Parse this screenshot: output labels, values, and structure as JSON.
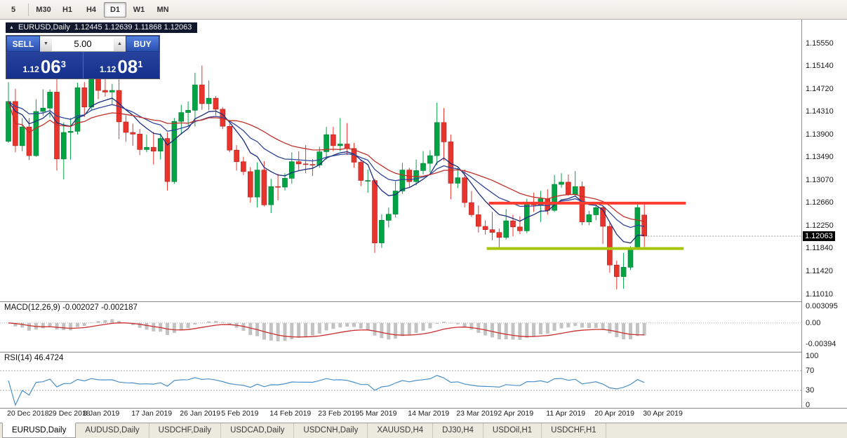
{
  "toolbar": {
    "timeframes": [
      "5",
      "M30",
      "H1",
      "H4",
      "D1",
      "W1",
      "MN"
    ],
    "active": "D1"
  },
  "chart": {
    "title_icon": "▲",
    "title_symbol": "EURUSD,Daily",
    "title_ohlc": "1.12445 1.12639 1.11868 1.12063",
    "trade_panel": {
      "sell_label": "SELL",
      "buy_label": "BUY",
      "volume": "5.00",
      "down_glyph": "▼",
      "up_glyph": "▲",
      "sell_price_small": "1.12",
      "sell_price_big": "06",
      "sell_price_sup": "3",
      "buy_price_small": "1.12",
      "buy_price_big": "08",
      "buy_price_sup": "1"
    },
    "price_axis": [
      "1.15550",
      "1.15140",
      "1.14720",
      "1.14310",
      "1.13900",
      "1.13490",
      "1.13070",
      "1.12660",
      "1.12250",
      "1.11840",
      "1.11420",
      "1.11010"
    ],
    "current_price_label": "1.12063",
    "chart_data": {
      "type": "candlestick",
      "symbol": "EURUSD",
      "timeframe": "Daily",
      "ohlc": [
        [
          1.1378,
          1.1485,
          1.1375,
          1.145
        ],
        [
          1.145,
          1.1473,
          1.1358,
          1.137
        ],
        [
          1.137,
          1.142,
          1.136,
          1.1404
        ],
        [
          1.1404,
          1.142,
          1.1344,
          1.1352
        ],
        [
          1.1352,
          1.1454,
          1.135,
          1.1432
        ],
        [
          1.1432,
          1.1472,
          1.1424,
          1.1438
        ],
        [
          1.1438,
          1.1472,
          1.1421,
          1.1467
        ],
        [
          1.1467,
          1.1497,
          1.1325,
          1.1346
        ],
        [
          1.1346,
          1.1412,
          1.1309,
          1.1394
        ],
        [
          1.1394,
          1.142,
          1.1345,
          1.1396
        ],
        [
          1.1396,
          1.1484,
          1.139,
          1.1475
        ],
        [
          1.1475,
          1.1485,
          1.1422,
          1.144
        ],
        [
          1.144,
          1.1518,
          1.1435,
          1.15
        ],
        [
          1.15,
          1.1522,
          1.1454,
          1.147
        ],
        [
          1.147,
          1.1511,
          1.1459,
          1.1467
        ],
        [
          1.1467,
          1.1482,
          1.1444,
          1.147
        ],
        [
          1.147,
          1.149,
          1.1382,
          1.1413
        ],
        [
          1.1413,
          1.1425,
          1.1377,
          1.1394
        ],
        [
          1.1394,
          1.141,
          1.137,
          1.1391
        ],
        [
          1.1391,
          1.14,
          1.1353,
          1.1363
        ],
        [
          1.1363,
          1.139,
          1.1358,
          1.1367
        ],
        [
          1.1367,
          1.1395,
          1.1336,
          1.136
        ],
        [
          1.136,
          1.1392,
          1.1345,
          1.1383
        ],
        [
          1.1383,
          1.1394,
          1.1289,
          1.1305
        ],
        [
          1.1305,
          1.142,
          1.1301,
          1.1414
        ],
        [
          1.1414,
          1.1444,
          1.139,
          1.143
        ],
        [
          1.143,
          1.145,
          1.1406,
          1.1434
        ],
        [
          1.1434,
          1.1502,
          1.1405,
          1.148
        ],
        [
          1.148,
          1.1515,
          1.1435,
          1.1446
        ],
        [
          1.1446,
          1.1488,
          1.1434,
          1.1456
        ],
        [
          1.1456,
          1.146,
          1.1425,
          1.1436
        ],
        [
          1.1436,
          1.144,
          1.14,
          1.1405
        ],
        [
          1.1405,
          1.141,
          1.1358,
          1.1362
        ],
        [
          1.1362,
          1.1371,
          1.1325,
          1.1341
        ],
        [
          1.1341,
          1.135,
          1.1317,
          1.1323
        ],
        [
          1.1323,
          1.1331,
          1.1267,
          1.1277
        ],
        [
          1.1277,
          1.134,
          1.1258,
          1.1326
        ],
        [
          1.1326,
          1.1342,
          1.126,
          1.1263
        ],
        [
          1.1263,
          1.131,
          1.1248,
          1.1296
        ],
        [
          1.1296,
          1.1319,
          1.1271,
          1.1295
        ],
        [
          1.1295,
          1.132,
          1.1289,
          1.1311
        ],
        [
          1.1311,
          1.1358,
          1.1301,
          1.1341
        ],
        [
          1.1341,
          1.136,
          1.1324,
          1.1337
        ],
        [
          1.1337,
          1.1371,
          1.132,
          1.1336
        ],
        [
          1.1336,
          1.1346,
          1.1315,
          1.1335
        ],
        [
          1.1335,
          1.1368,
          1.133,
          1.1359
        ],
        [
          1.1359,
          1.1404,
          1.1345,
          1.139
        ],
        [
          1.139,
          1.1404,
          1.136,
          1.137
        ],
        [
          1.137,
          1.142,
          1.136,
          1.1373
        ],
        [
          1.1373,
          1.1411,
          1.1353,
          1.1365
        ],
        [
          1.1365,
          1.1375,
          1.133,
          1.134
        ],
        [
          1.134,
          1.1344,
          1.1297,
          1.1307
        ],
        [
          1.1307,
          1.1327,
          1.1285,
          1.1307
        ],
        [
          1.1307,
          1.131,
          1.1176,
          1.1194
        ],
        [
          1.1194,
          1.1246,
          1.1185,
          1.1235
        ],
        [
          1.1235,
          1.1258,
          1.1222,
          1.1246
        ],
        [
          1.1246,
          1.1305,
          1.124,
          1.1288
        ],
        [
          1.1288,
          1.1339,
          1.1283,
          1.1326
        ],
        [
          1.1326,
          1.133,
          1.1294,
          1.1305
        ],
        [
          1.1305,
          1.1345,
          1.1298,
          1.1325
        ],
        [
          1.1325,
          1.136,
          1.1318,
          1.1338
        ],
        [
          1.1338,
          1.1362,
          1.1322,
          1.1352
        ],
        [
          1.1352,
          1.1448,
          1.1335,
          1.1412
        ],
        [
          1.1412,
          1.1438,
          1.1343,
          1.1377
        ],
        [
          1.1377,
          1.139,
          1.1273,
          1.1302
        ],
        [
          1.1302,
          1.133,
          1.1293,
          1.1312
        ],
        [
          1.1312,
          1.1327,
          1.1258,
          1.1267
        ],
        [
          1.1267,
          1.1288,
          1.1241,
          1.1245
        ],
        [
          1.1245,
          1.1262,
          1.1213,
          1.1224
        ],
        [
          1.1224,
          1.1235,
          1.1209,
          1.1218
        ],
        [
          1.1218,
          1.125,
          1.1199,
          1.1213
        ],
        [
          1.1213,
          1.122,
          1.1184,
          1.1204
        ],
        [
          1.1204,
          1.1255,
          1.12,
          1.1234
        ],
        [
          1.1234,
          1.1245,
          1.1206,
          1.1223
        ],
        [
          1.1223,
          1.1242,
          1.121,
          1.1216
        ],
        [
          1.1216,
          1.1274,
          1.1212,
          1.1264
        ],
        [
          1.1264,
          1.1285,
          1.125,
          1.1263
        ],
        [
          1.1263,
          1.1288,
          1.1232,
          1.1274
        ],
        [
          1.1274,
          1.1291,
          1.1245,
          1.1253
        ],
        [
          1.1253,
          1.1317,
          1.125,
          1.13
        ],
        [
          1.13,
          1.132,
          1.1294,
          1.1304
        ],
        [
          1.1304,
          1.1318,
          1.1279,
          1.1282
        ],
        [
          1.1282,
          1.1324,
          1.1278,
          1.1296
        ],
        [
          1.1296,
          1.1305,
          1.1226,
          1.1232
        ],
        [
          1.1232,
          1.1252,
          1.1226,
          1.1245
        ],
        [
          1.1245,
          1.1264,
          1.1235,
          1.1258
        ],
        [
          1.1258,
          1.1262,
          1.1192,
          1.1224
        ],
        [
          1.1224,
          1.123,
          1.114,
          1.1154
        ],
        [
          1.1154,
          1.1162,
          1.111,
          1.1133
        ],
        [
          1.1133,
          1.1176,
          1.1111,
          1.115
        ],
        [
          1.115,
          1.1188,
          1.1145,
          1.1185
        ],
        [
          1.1187,
          1.1265,
          1.1185,
          1.1258
        ],
        [
          1.12445,
          1.12639,
          1.11868,
          1.12063
        ]
      ],
      "last_close": 1.12063,
      "date_ticks": [
        {
          "index": 0,
          "label": "20 Dec 2018"
        },
        {
          "index": 6,
          "label": "29 Dec 2018"
        },
        {
          "index": 11,
          "label": "8 Jan 2019"
        },
        {
          "index": 18,
          "label": "17 Jan 2019"
        },
        {
          "index": 25,
          "label": "26 Jan 2019"
        },
        {
          "index": 31,
          "label": "5 Feb 2019"
        },
        {
          "index": 38,
          "label": "14 Feb 2019"
        },
        {
          "index": 45,
          "label": "23 Feb 2019"
        },
        {
          "index": 51,
          "label": "5 Mar 2019"
        },
        {
          "index": 58,
          "label": "14 Mar 2019"
        },
        {
          "index": 65,
          "label": "23 Mar 2019"
        },
        {
          "index": 71,
          "label": "2 Apr 2019"
        },
        {
          "index": 78,
          "label": "11 Apr 2019"
        },
        {
          "index": 85,
          "label": "20 Apr 2019"
        },
        {
          "index": 92,
          "label": "30 Apr 2019"
        }
      ],
      "moving_averages": [
        {
          "type": "ema",
          "period": 8,
          "color": "#1a2c7c"
        },
        {
          "type": "ema",
          "period": 17,
          "color": "#2f4699"
        },
        {
          "type": "sma",
          "period": 26,
          "color": "#c03028"
        }
      ],
      "hlines": [
        {
          "price": 1.1266,
          "from_index": 69.5,
          "to_index": 98,
          "color": "#ff3b30",
          "width": 4,
          "name": "resistance-line"
        },
        {
          "price": 1.1184,
          "from_index": 69.2,
          "to_index": 97.7,
          "color": "#a5c60a",
          "width": 4,
          "name": "support-line"
        }
      ]
    }
  },
  "macd": {
    "label": "MACD(12,26,9) -0.002027 -0.002187",
    "fast": 12,
    "slow": 26,
    "signal": 9,
    "main_value": -0.002027,
    "signal_value": -0.002187,
    "axis": [
      {
        "label": "0.003095",
        "value": 0.003095
      },
      {
        "label": "0.00",
        "value": 0
      },
      {
        "label": "-0.00394",
        "value": -0.00394
      }
    ],
    "bar_color": "#c3c3c3",
    "signal_color": "#cc2e2e"
  },
  "rsi": {
    "label": "RSI(14) 46.4724",
    "period": 14,
    "value": 46.4724,
    "axis": [
      {
        "label": "100",
        "value": 100
      },
      {
        "label": "70",
        "value": 70
      },
      {
        "label": "30",
        "value": 30
      },
      {
        "label": "0",
        "value": 0
      }
    ],
    "levels": [
      70,
      30
    ],
    "line_color": "#4a90c8"
  },
  "tabs": {
    "items": [
      "EURUSD,Daily",
      "AUDUSD,Daily",
      "USDCHF,Daily",
      "USDCAD,Daily",
      "USDCNH,Daily",
      "XAUUSD,H4",
      "DJ30,H4",
      "USDOil,H1",
      "USDCHF,H1"
    ],
    "active": "EURUSD,Daily"
  },
  "colors": {
    "up": "#00a445",
    "up_stroke": "#007a33",
    "down": "#e8342c",
    "down_stroke": "#b0221c",
    "axis_text": "#1a1a1a"
  }
}
